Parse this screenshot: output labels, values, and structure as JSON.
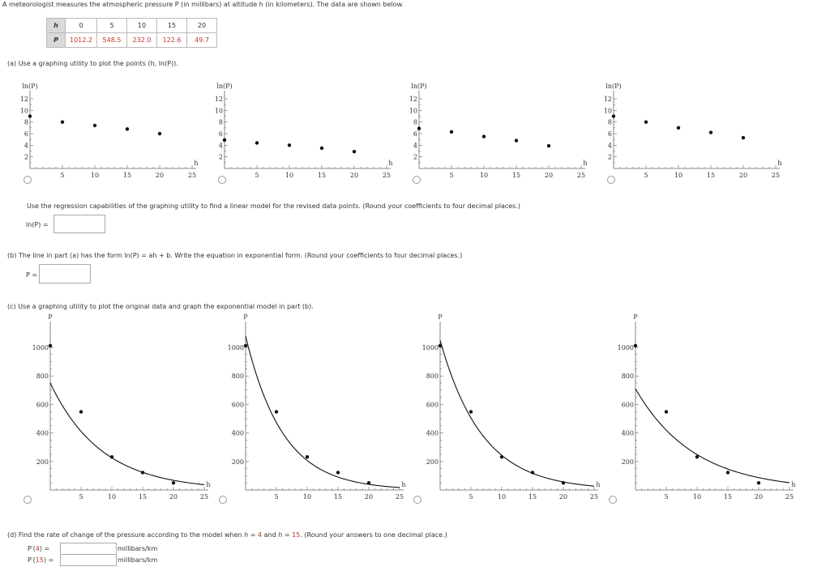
{
  "intro": "A meteorologist measures the atmospheric pressure P (in millibars) at altitude h (in kilometers). The data are shown below.",
  "table": {
    "h_label": "h",
    "p_label": "P",
    "h_values": [
      "0",
      "5",
      "10",
      "15",
      "20"
    ],
    "p_values": [
      "1012.2",
      "548.5",
      "232.0",
      "122.6",
      "49.7"
    ]
  },
  "part_a": {
    "prompt": "(a)  Use a graphing utility to plot the points (h, ln(P)).",
    "regression_text": "Use the regression capabilities of the graphing utility to find a linear model for the revised data points. (Round your coefficients to four decimal places.)",
    "answer_label": "ln(P) =",
    "answer_value": ""
  },
  "part_b": {
    "prompt": "(b)  The line in part (a) has the form ln(P) = ah + b. Write the equation in exponential form. (Round your coefficients to four decimal places.)",
    "answer_label": "P =",
    "answer_value": ""
  },
  "part_c": {
    "prompt": "(c)  Use a graphing utility to plot the original data and graph the exponential model in part (b)."
  },
  "part_d": {
    "prompt_pre": "(d)  Find the rate of change of the pressure according to the model when ",
    "prompt_h": "h",
    "prompt_eq1": " = ",
    "h1": "4",
    "prompt_and": " and ",
    "prompt_eq2": " = ",
    "h2": "15",
    "prompt_post": ". (Round your answers to one decimal place.)",
    "label1_pre": "P′(",
    "label1_post": ") =",
    "label2_pre": "P′(",
    "label2_post": ") =",
    "unit": "millibars/km",
    "answer1": "",
    "answer2": ""
  },
  "chart_data": [
    {
      "type": "scatter",
      "group": "a",
      "option": 1,
      "ylabel": "ln(P)",
      "xlabel": "h",
      "x_ticks": [
        5,
        10,
        15,
        20,
        25
      ],
      "y_ticks": [
        2,
        4,
        6,
        8,
        10,
        12
      ],
      "xlim": [
        0,
        25
      ],
      "ylim": [
        0,
        12
      ],
      "points": [
        [
          0,
          9.0
        ],
        [
          5,
          8.0
        ],
        [
          10,
          7.4
        ],
        [
          15,
          6.8
        ],
        [
          20,
          6.0
        ]
      ]
    },
    {
      "type": "scatter",
      "group": "a",
      "option": 2,
      "ylabel": "ln(P)",
      "xlabel": "h",
      "x_ticks": [
        5,
        10,
        15,
        20,
        25
      ],
      "y_ticks": [
        2,
        4,
        6,
        8,
        10,
        12
      ],
      "xlim": [
        0,
        25
      ],
      "ylim": [
        0,
        12
      ],
      "points": [
        [
          0,
          4.9
        ],
        [
          5,
          4.4
        ],
        [
          10,
          4.0
        ],
        [
          15,
          3.5
        ],
        [
          20,
          2.9
        ]
      ]
    },
    {
      "type": "scatter",
      "group": "a",
      "option": 3,
      "ylabel": "ln(P)",
      "xlabel": "h",
      "x_ticks": [
        5,
        10,
        15,
        20,
        25
      ],
      "y_ticks": [
        2,
        4,
        6,
        8,
        10,
        12
      ],
      "xlim": [
        0,
        25
      ],
      "ylim": [
        0,
        12
      ],
      "points": [
        [
          0,
          6.9
        ],
        [
          5,
          6.3
        ],
        [
          10,
          5.5
        ],
        [
          15,
          4.8
        ],
        [
          20,
          3.9
        ]
      ]
    },
    {
      "type": "scatter",
      "group": "a",
      "option": 4,
      "ylabel": "ln(P)",
      "xlabel": "h",
      "x_ticks": [
        5,
        10,
        15,
        20,
        25
      ],
      "y_ticks": [
        2,
        4,
        6,
        8,
        10,
        12
      ],
      "xlim": [
        0,
        25
      ],
      "ylim": [
        0,
        12
      ],
      "points": [
        [
          0,
          9.0
        ],
        [
          5,
          8.0
        ],
        [
          10,
          7.0
        ],
        [
          15,
          6.2
        ],
        [
          20,
          5.3
        ]
      ]
    },
    {
      "type": "line",
      "group": "c",
      "option": 1,
      "ylabel": "P",
      "xlabel": "h",
      "x_ticks": [
        5,
        10,
        15,
        20,
        25
      ],
      "y_ticks": [
        200,
        400,
        600,
        800,
        1000
      ],
      "xlim": [
        0,
        25
      ],
      "ylim": [
        0,
        1000
      ],
      "points": [
        [
          0,
          1012.2
        ],
        [
          5,
          548.5
        ],
        [
          10,
          232.0
        ],
        [
          15,
          122.6
        ],
        [
          20,
          49.7
        ]
      ],
      "curve": {
        "a": 750,
        "k": 0.12
      }
    },
    {
      "type": "line",
      "group": "c",
      "option": 2,
      "ylabel": "P",
      "xlabel": "h",
      "x_ticks": [
        5,
        10,
        15,
        20,
        25
      ],
      "y_ticks": [
        200,
        400,
        600,
        800,
        1000
      ],
      "xlim": [
        0,
        25
      ],
      "ylim": [
        0,
        1000
      ],
      "points": [
        [
          0,
          1012.2
        ],
        [
          5,
          548.5
        ],
        [
          10,
          232.0
        ],
        [
          15,
          122.6
        ],
        [
          20,
          49.7
        ]
      ],
      "curve": {
        "a": 1080,
        "k": 0.165
      }
    },
    {
      "type": "line",
      "group": "c",
      "option": 3,
      "ylabel": "P",
      "xlabel": "h",
      "x_ticks": [
        5,
        10,
        15,
        20,
        25
      ],
      "y_ticks": [
        200,
        400,
        600,
        800,
        1000
      ],
      "xlim": [
        0,
        25
      ],
      "ylim": [
        0,
        1000
      ],
      "points": [
        [
          0,
          1012.2
        ],
        [
          5,
          548.5
        ],
        [
          10,
          232.0
        ],
        [
          15,
          122.6
        ],
        [
          20,
          49.7
        ]
      ],
      "curve": {
        "a": 1050,
        "k": 0.146
      }
    },
    {
      "type": "line",
      "group": "c",
      "option": 4,
      "ylabel": "P",
      "xlabel": "h",
      "x_ticks": [
        5,
        10,
        15,
        20,
        25
      ],
      "y_ticks": [
        200,
        400,
        600,
        800,
        1000
      ],
      "xlim": [
        0,
        25
      ],
      "ylim": [
        0,
        1000
      ],
      "points": [
        [
          0,
          1012.2
        ],
        [
          5,
          548.5
        ],
        [
          10,
          232.0
        ],
        [
          15,
          122.6
        ],
        [
          20,
          49.7
        ]
      ],
      "curve": {
        "a": 710,
        "k": 0.105
      }
    }
  ]
}
